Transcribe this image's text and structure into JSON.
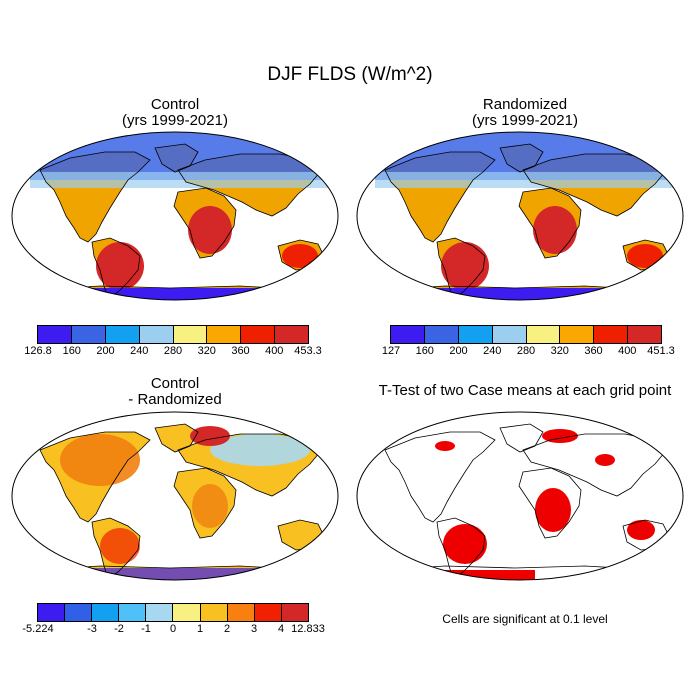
{
  "main_title": "DJF FLDS (W/m^2)",
  "panels": {
    "control": {
      "title_line1": "Control",
      "title_line2": "(yrs 1999-2021)"
    },
    "randomized": {
      "title_line1": "Randomized",
      "title_line2": "(yrs 1999-2021)"
    },
    "difference": {
      "title_line1": "Control",
      "title_line2": "- Randomized"
    },
    "ttest": {
      "title_line1": "T-Test of two Case means at each grid point"
    }
  },
  "colorbars": {
    "control": {
      "labels": [
        "126.8",
        "160",
        "200",
        "240",
        "280",
        "320",
        "360",
        "400",
        "453.3"
      ],
      "colors": [
        "#3c1cf0",
        "#3a64e4",
        "#14a0f0",
        "#9ccef0",
        "#f8f080",
        "#f8a800",
        "#ee2000",
        "#d42828"
      ]
    },
    "randomized": {
      "labels": [
        "127",
        "160",
        "200",
        "240",
        "280",
        "320",
        "360",
        "400",
        "451.3"
      ],
      "colors": [
        "#3c1cf0",
        "#3a64e4",
        "#14a0f0",
        "#9ccef0",
        "#f8f080",
        "#f8a800",
        "#ee2000",
        "#d42828"
      ]
    },
    "difference": {
      "labels": [
        "-5.224",
        "",
        "-3",
        "-2",
        "-1",
        "0",
        "1",
        "2",
        "3",
        "4",
        "12.833"
      ],
      "colors": [
        "#3c1cf0",
        "#3060e8",
        "#14a0f0",
        "#50c0f8",
        "#a8d8f0",
        "#f8f080",
        "#f8c020",
        "#f88010",
        "#f02000",
        "#d42828"
      ]
    }
  },
  "significance_note": "Cells are significant at 0.1 level",
  "colors": {
    "significant": "#ee0000",
    "coast": "#000000"
  }
}
